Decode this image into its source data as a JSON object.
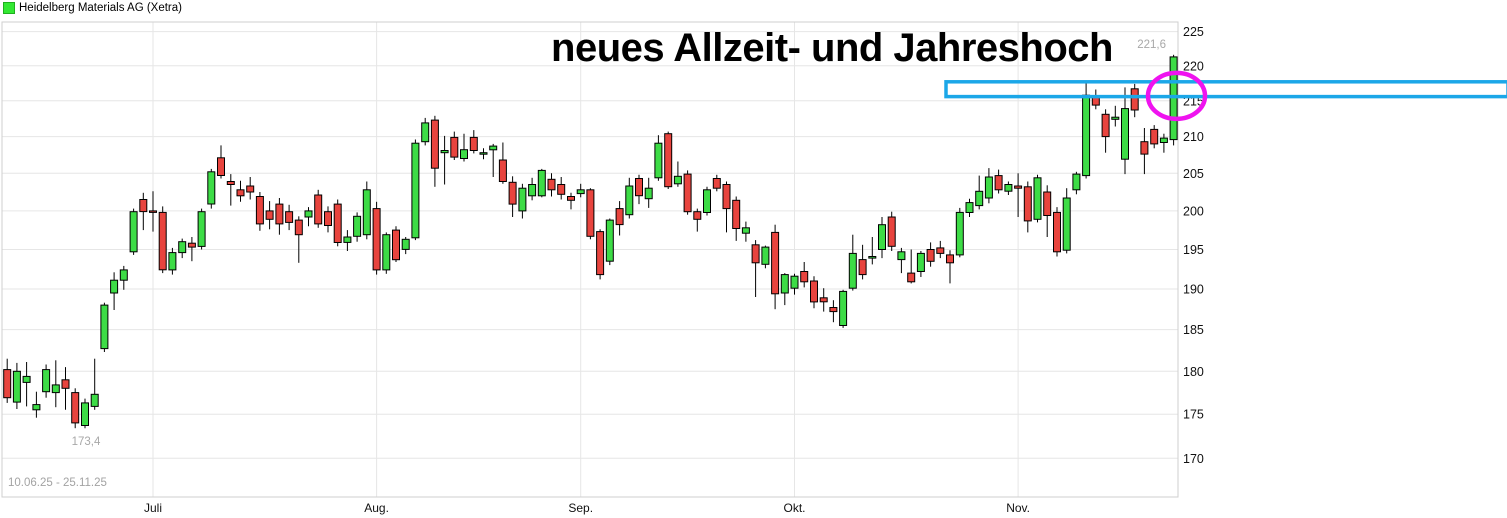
{
  "legend": {
    "label": "Heidelberg Materials AG (Xetra)",
    "marker_color": "#33e833"
  },
  "title": {
    "text": "neues Allzeit- und Jahreshoch"
  },
  "footer": {
    "date_range": "10.06.25 - 25.11.25"
  },
  "annotations": {
    "high_label": "221,6",
    "low_label": "173,4",
    "highlight_box": {
      "price_top": 217.7,
      "price_bottom": 215.6,
      "from_index": 97,
      "color": "#1ba7e8"
    },
    "highlight_circle": {
      "index": 120.3,
      "price": 215.7,
      "color": "#ef13ef"
    }
  },
  "axes": {
    "y_ticks": [
      225,
      220,
      215,
      210,
      205,
      200,
      195,
      190,
      185,
      180,
      175,
      170
    ],
    "x_ticks": [
      {
        "label": "Juli",
        "index": 15
      },
      {
        "label": "Aug.",
        "index": 38
      },
      {
        "label": "Sep.",
        "index": 59
      },
      {
        "label": "Okt.",
        "index": 81
      },
      {
        "label": "Nov.",
        "index": 104
      }
    ]
  },
  "chart_data": {
    "type": "candlestick",
    "y_scale": "log",
    "ylim": [
      165.5,
      226.5
    ],
    "high": 221.6,
    "low": 173.4,
    "up_color": "#3ddc46",
    "down_color": "#e8443e",
    "wick_color": "#000000",
    "grid": true,
    "ohlc": [
      [
        180.2,
        181.5,
        176.3,
        176.9
      ],
      [
        176.4,
        181.0,
        175.6,
        180.0
      ],
      [
        178.7,
        181.1,
        175.9,
        179.4
      ],
      [
        175.5,
        177.6,
        174.6,
        176.1
      ],
      [
        177.6,
        180.8,
        176.9,
        180.2
      ],
      [
        177.5,
        181.3,
        175.8,
        178.4
      ],
      [
        179.0,
        180.5,
        175.5,
        178.0
      ],
      [
        177.5,
        178.0,
        173.4,
        174.0
      ],
      [
        173.7,
        176.8,
        173.4,
        176.3
      ],
      [
        175.9,
        181.5,
        175.5,
        177.3
      ],
      [
        182.7,
        188.3,
        182.3,
        188.0
      ],
      [
        189.5,
        192.1,
        187.4,
        191.1
      ],
      [
        191.1,
        192.9,
        189.9,
        192.4
      ],
      [
        194.7,
        200.3,
        194.3,
        199.9
      ],
      [
        201.5,
        202.4,
        197.5,
        199.9
      ],
      [
        200.0,
        202.6,
        197.3,
        199.8
      ],
      [
        199.8,
        200.6,
        192.0,
        192.4
      ],
      [
        192.4,
        195.2,
        191.8,
        194.6
      ],
      [
        194.6,
        196.4,
        193.9,
        196.0
      ],
      [
        195.8,
        196.6,
        193.5,
        195.3
      ],
      [
        195.4,
        200.3,
        195.0,
        199.9
      ],
      [
        200.9,
        205.6,
        200.3,
        205.2
      ],
      [
        207.1,
        208.8,
        204.3,
        204.7
      ],
      [
        203.9,
        204.9,
        200.7,
        203.5
      ],
      [
        202.8,
        204.0,
        201.2,
        202.0
      ],
      [
        203.3,
        204.5,
        201.5,
        202.5
      ],
      [
        201.9,
        202.5,
        197.4,
        198.3
      ],
      [
        200.0,
        201.3,
        197.6,
        198.9
      ],
      [
        200.9,
        201.7,
        196.9,
        198.3
      ],
      [
        199.9,
        200.8,
        197.5,
        198.5
      ],
      [
        198.8,
        199.3,
        193.3,
        196.9
      ],
      [
        199.2,
        200.5,
        198.0,
        200.0
      ],
      [
        202.1,
        202.8,
        197.8,
        198.3
      ],
      [
        199.9,
        200.6,
        197.2,
        198.1
      ],
      [
        200.9,
        201.5,
        195.4,
        195.9
      ],
      [
        195.9,
        197.5,
        194.8,
        196.6
      ],
      [
        196.7,
        199.8,
        196.0,
        199.3
      ],
      [
        196.9,
        203.9,
        196.3,
        202.8
      ],
      [
        200.3,
        201.2,
        191.8,
        192.4
      ],
      [
        192.4,
        197.2,
        191.9,
        196.9
      ],
      [
        197.5,
        198.0,
        193.4,
        193.7
      ],
      [
        195.0,
        196.6,
        194.4,
        196.3
      ],
      [
        196.5,
        209.6,
        196.2,
        209.1
      ],
      [
        209.3,
        212.6,
        208.8,
        211.9
      ],
      [
        212.3,
        212.9,
        203.2,
        205.7
      ],
      [
        207.8,
        210.1,
        203.5,
        208.1
      ],
      [
        209.9,
        210.7,
        206.8,
        207.2
      ],
      [
        207.0,
        210.4,
        206.6,
        208.2
      ],
      [
        209.9,
        210.9,
        207.7,
        208.1
      ],
      [
        207.6,
        208.4,
        206.9,
        207.8
      ],
      [
        208.2,
        209.0,
        204.5,
        208.7
      ],
      [
        206.8,
        209.2,
        203.6,
        203.9
      ],
      [
        203.8,
        204.6,
        199.2,
        200.9
      ],
      [
        200.0,
        203.6,
        199.0,
        203.0
      ],
      [
        202.0,
        204.4,
        201.4,
        203.5
      ],
      [
        202.0,
        205.6,
        201.8,
        205.4
      ],
      [
        204.2,
        205.0,
        201.9,
        202.8
      ],
      [
        203.5,
        204.5,
        201.5,
        202.2
      ],
      [
        201.9,
        202.4,
        200.2,
        201.4
      ],
      [
        202.3,
        203.6,
        201.8,
        202.8
      ],
      [
        202.8,
        203.0,
        196.3,
        196.7
      ],
      [
        197.3,
        197.6,
        191.2,
        191.8
      ],
      [
        193.5,
        199.0,
        193.0,
        198.8
      ],
      [
        200.3,
        201.3,
        196.8,
        198.2
      ],
      [
        199.5,
        204.4,
        199.0,
        203.3
      ],
      [
        204.3,
        204.8,
        200.9,
        202.0
      ],
      [
        201.6,
        204.4,
        200.4,
        203.0
      ],
      [
        204.4,
        210.2,
        204.0,
        209.1
      ],
      [
        210.4,
        210.7,
        202.9,
        203.2
      ],
      [
        203.6,
        206.6,
        203.2,
        204.6
      ],
      [
        204.9,
        205.4,
        199.5,
        199.9
      ],
      [
        199.9,
        200.3,
        197.3,
        198.9
      ],
      [
        199.8,
        203.2,
        199.4,
        202.8
      ],
      [
        204.3,
        204.8,
        202.6,
        203.0
      ],
      [
        203.5,
        203.9,
        197.2,
        200.3
      ],
      [
        201.4,
        201.9,
        196.1,
        197.7
      ],
      [
        197.1,
        198.6,
        196.0,
        197.8
      ],
      [
        195.6,
        196.2,
        189.0,
        193.3
      ],
      [
        193.1,
        195.5,
        192.6,
        195.3
      ],
      [
        197.2,
        198.2,
        187.5,
        189.4
      ],
      [
        189.5,
        192.0,
        188.0,
        191.8
      ],
      [
        190.1,
        191.9,
        189.3,
        191.6
      ],
      [
        192.2,
        193.4,
        190.2,
        190.9
      ],
      [
        191.0,
        191.6,
        187.6,
        188.4
      ],
      [
        188.9,
        190.1,
        187.2,
        188.4
      ],
      [
        187.7,
        188.6,
        185.9,
        187.2
      ],
      [
        185.5,
        189.9,
        185.2,
        189.7
      ],
      [
        190.1,
        196.9,
        189.8,
        194.5
      ],
      [
        193.7,
        195.6,
        191.2,
        191.8
      ],
      [
        193.9,
        196.6,
        193.1,
        194.1
      ],
      [
        195.0,
        199.2,
        193.9,
        198.2
      ],
      [
        199.2,
        199.9,
        194.8,
        195.4
      ],
      [
        193.7,
        195.2,
        192.0,
        194.7
      ],
      [
        192.0,
        195.0,
        190.7,
        190.9
      ],
      [
        192.2,
        194.8,
        191.5,
        194.5
      ],
      [
        195.0,
        195.9,
        192.8,
        193.5
      ],
      [
        195.2,
        196.1,
        193.9,
        194.5
      ],
      [
        194.3,
        194.9,
        190.7,
        193.3
      ],
      [
        194.3,
        200.4,
        194.0,
        199.8
      ],
      [
        199.8,
        201.6,
        199.2,
        201.1
      ],
      [
        200.7,
        204.7,
        200.2,
        202.6
      ],
      [
        201.7,
        205.7,
        201.0,
        204.5
      ],
      [
        204.7,
        205.5,
        202.3,
        202.8
      ],
      [
        202.6,
        203.9,
        202.1,
        203.5
      ],
      [
        203.3,
        205.0,
        199.2,
        203.0
      ],
      [
        203.2,
        203.9,
        197.2,
        198.7
      ],
      [
        198.9,
        204.8,
        198.5,
        204.4
      ],
      [
        202.5,
        203.4,
        196.6,
        199.4
      ],
      [
        199.8,
        200.5,
        194.1,
        194.7
      ],
      [
        194.9,
        203.0,
        194.5,
        201.7
      ],
      [
        202.8,
        205.2,
        202.2,
        204.9
      ],
      [
        204.7,
        217.7,
        204.3,
        215.8
      ],
      [
        215.5,
        216.6,
        213.8,
        214.4
      ],
      [
        213.1,
        213.8,
        207.8,
        210.0
      ],
      [
        212.4,
        214.3,
        211.4,
        212.7
      ],
      [
        206.9,
        216.9,
        204.9,
        213.9
      ],
      [
        216.7,
        217.4,
        212.7,
        213.7
      ],
      [
        209.3,
        211.2,
        204.9,
        207.6
      ],
      [
        211.0,
        211.6,
        208.4,
        209.0
      ],
      [
        209.2,
        210.4,
        207.8,
        209.8
      ],
      [
        209.6,
        221.6,
        208.8,
        221.3
      ]
    ]
  }
}
